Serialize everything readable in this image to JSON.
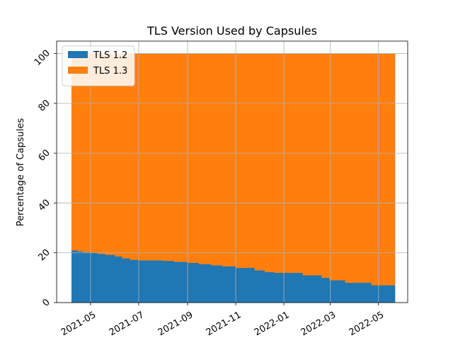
{
  "chart_data": {
    "type": "area",
    "stacked": true,
    "title": "TLS Version Used by Capsules",
    "xlabel": "",
    "ylabel": "Percentage of Capsules",
    "x_type": "date",
    "xlim": [
      "2021-03-19",
      "2022-06-07"
    ],
    "ylim": [
      0,
      105
    ],
    "x_ticks": [
      "2021-05-01",
      "2021-07-01",
      "2021-09-01",
      "2021-11-01",
      "2022-01-01",
      "2022-03-01",
      "2022-05-01"
    ],
    "x_tick_labels": [
      "2021-05",
      "2021-07",
      "2021-09",
      "2021-11",
      "2022-01",
      "2022-03",
      "2022-05"
    ],
    "y_ticks": [
      0,
      20,
      40,
      60,
      80,
      100
    ],
    "y_tick_labels": [
      "0",
      "20",
      "40",
      "60",
      "80",
      "100"
    ],
    "grid": true,
    "legend_position": "top-left",
    "x": [
      "2021-04-07",
      "2021-04-15",
      "2021-04-22",
      "2021-05-01",
      "2021-05-10",
      "2021-05-20",
      "2021-06-01",
      "2021-06-10",
      "2021-06-20",
      "2021-07-01",
      "2021-07-15",
      "2021-08-01",
      "2021-08-15",
      "2021-09-01",
      "2021-09-15",
      "2021-10-01",
      "2021-10-15",
      "2021-11-01",
      "2021-11-15",
      "2021-11-25",
      "2021-12-08",
      "2021-12-20",
      "2022-01-01",
      "2022-01-15",
      "2022-01-25",
      "2022-02-08",
      "2022-02-18",
      "2022-02-28",
      "2022-03-10",
      "2022-03-20",
      "2022-04-01",
      "2022-04-10",
      "2022-04-22",
      "2022-05-01",
      "2022-05-15",
      "2022-05-21"
    ],
    "series": [
      {
        "name": "TLS 1.2",
        "color": "#1f77b4",
        "values": [
          21,
          20.6,
          20.3,
          20,
          19.6,
          19.2,
          18.6,
          17.8,
          17.2,
          17,
          17,
          16.8,
          16.4,
          16,
          15.5,
          15,
          14.6,
          14,
          14,
          13,
          12.3,
          12,
          12,
          12,
          11,
          11,
          10,
          9,
          9,
          8,
          8,
          8,
          7,
          7,
          7,
          7
        ]
      },
      {
        "name": "TLS 1.3",
        "color": "#ff7f0e",
        "values": [
          79,
          79.4,
          79.7,
          80,
          80.4,
          80.8,
          81.4,
          82.2,
          82.8,
          83,
          83,
          83.2,
          83.6,
          84,
          84.5,
          85,
          85.4,
          86,
          86,
          87,
          87.7,
          88,
          88,
          88,
          89,
          89,
          90,
          91,
          91,
          92,
          92,
          92,
          93,
          93,
          93,
          93
        ]
      }
    ]
  }
}
